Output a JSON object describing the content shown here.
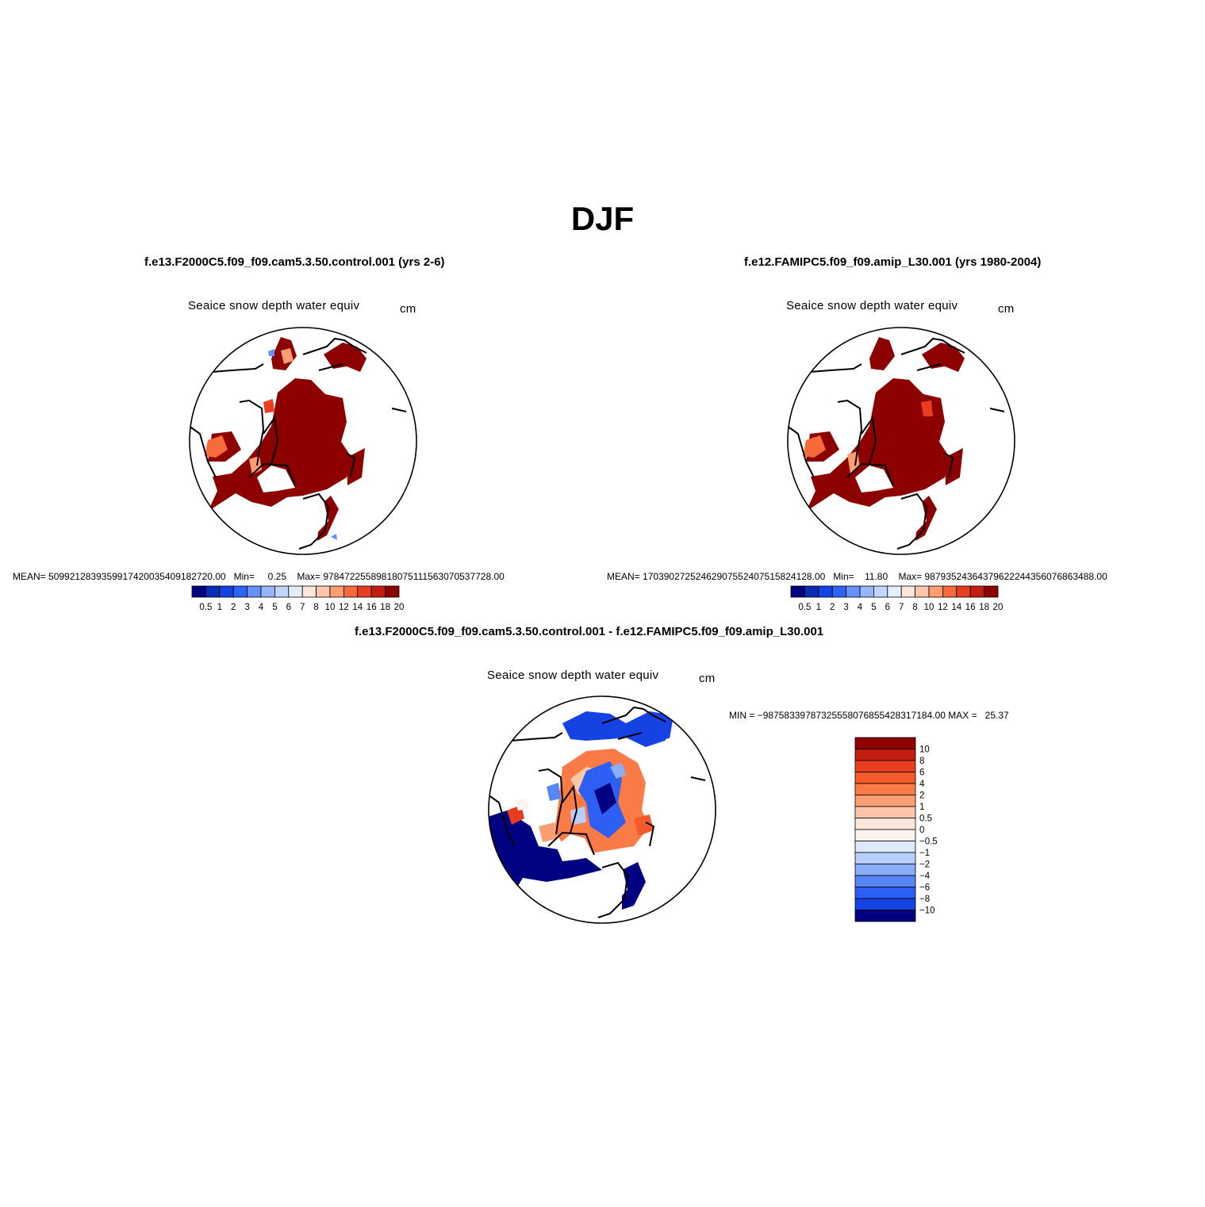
{
  "page": {
    "title": "DJF"
  },
  "panels": [
    {
      "case_title": "f.e13.F2000C5.f09_f09.cam5.3.50.control.001 (yrs 2-6)",
      "variable_label": "Seaice  snow  depth  water  equiv",
      "units": "cm",
      "stats": {
        "mean_label": "MEAN=",
        "mean": "509921283935991742003540918272­0.00",
        "min_label": "Min=",
        "min": "0.25",
        "max_label": "Max=",
        "max": "9784722558981807511156307053772­8.00"
      },
      "colorbar": {
        "labels": [
          "0.5",
          "1",
          "2",
          "3",
          "4",
          "5",
          "6",
          "7",
          "8",
          "10",
          "12",
          "14",
          "16",
          "18",
          "20"
        ],
        "colors": [
          "#000080",
          "#0a2cb4",
          "#1542e2",
          "#2e64f6",
          "#6690fa",
          "#97b5fb",
          "#c2d6fd",
          "#e3eefd",
          "#fde6da",
          "#fcc6ab",
          "#fc9d72",
          "#f76a3c",
          "#e93d1f",
          "#c21d0e",
          "#8c0000"
        ]
      }
    },
    {
      "case_title": "f.e12.FAMIPC5.f09_f09.amip_L30.001 (yrs 1980-2004)",
      "variable_label": "Seaice  snow  depth  water  equiv",
      "units": "cm",
      "stats": {
        "mean_label": "MEAN=",
        "mean": "170390272524629075524075158241­28.00",
        "min_label": "Min=",
        "min": "11.80",
        "max_label": "Max=",
        "max": "9879352436437962224435607686348­8.00"
      },
      "colorbar": {
        "labels": [
          "0.5",
          "1",
          "2",
          "3",
          "4",
          "5",
          "6",
          "7",
          "8",
          "10",
          "12",
          "14",
          "16",
          "18",
          "20"
        ],
        "colors": [
          "#000080",
          "#0a2cb4",
          "#1542e2",
          "#2e64f6",
          "#6690fa",
          "#97b5fb",
          "#c2d6fd",
          "#e3eefd",
          "#fde6da",
          "#fcc6ab",
          "#fc9d72",
          "#f76a3c",
          "#e93d1f",
          "#c21d0e",
          "#8c0000"
        ]
      }
    }
  ],
  "difference": {
    "case_title": "f.e13.F2000C5.f09_f09.cam5.3.50.control.001 - f.e12.FAMIPC5.f09_f09.amip_L30.001",
    "variable_label": "Seaice  snow  depth  water  equiv",
    "units": "cm",
    "stats": {
      "min_label": "MIN =",
      "min": "−9875833978732555807685542831718­4.00",
      "max_label": "MAX =",
      "max": "25.37"
    },
    "colorbar": {
      "labels": [
        "10",
        "8",
        "6",
        "4",
        "2",
        "1",
        "0.5",
        "0",
        "−0.5",
        "−1",
        "−2",
        "−4",
        "−6",
        "−8",
        "−10"
      ],
      "colors": [
        "#8c0000",
        "#c21d0e",
        "#e93d1f",
        "#f55a2b",
        "#fa7b45",
        "#fc9d72",
        "#fcc6ab",
        "#fde6da",
        "#fdf3ee",
        "#dde9fb",
        "#b8cffb",
        "#8aaefa",
        "#5786f7",
        "#2e5ff3",
        "#1542e2",
        "#000080"
      ]
    }
  }
}
